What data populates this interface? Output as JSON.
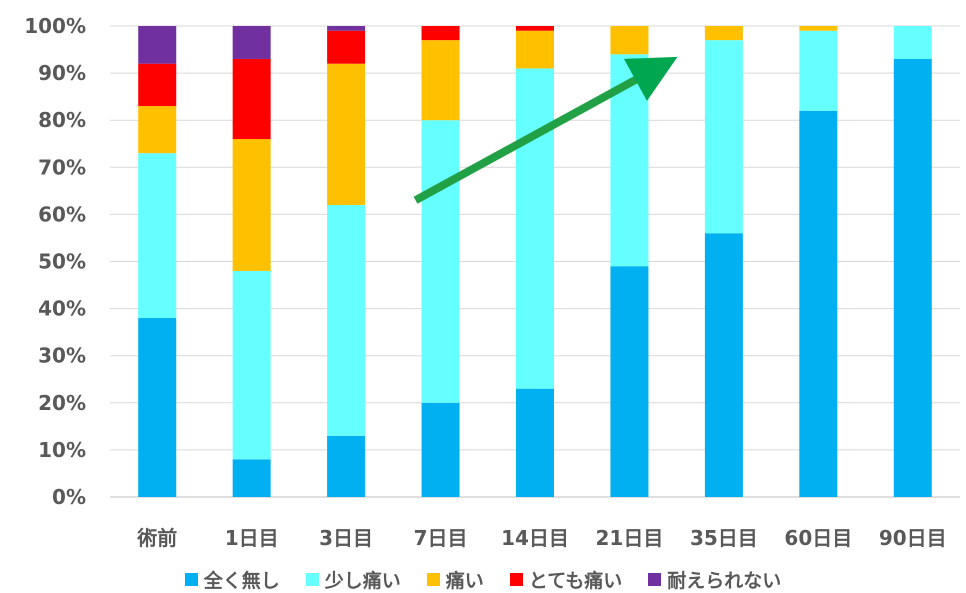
{
  "chart_data": {
    "type": "bar",
    "stacked": true,
    "percent": true,
    "categories": [
      "術前",
      "1日目",
      "3日目",
      "7日目",
      "14日目",
      "21日目",
      "35日目",
      "60日目",
      "90日目"
    ],
    "series": [
      {
        "name": "全く無し",
        "color": "#00B0F0",
        "values": [
          38,
          8,
          13,
          20,
          23,
          49,
          56,
          82,
          93
        ]
      },
      {
        "name": "少し痛い",
        "color": "#66FFFF",
        "values": [
          35,
          40,
          49,
          60,
          68,
          45,
          41,
          17,
          7
        ]
      },
      {
        "name": "痛い",
        "color": "#FFC000",
        "values": [
          10,
          28,
          30,
          17,
          8,
          6,
          3,
          1,
          0
        ]
      },
      {
        "name": "とても痛い",
        "color": "#FF0000",
        "values": [
          9,
          17,
          7,
          3,
          1,
          0,
          0,
          0,
          0
        ]
      },
      {
        "name": "耐えられない",
        "color": "#7030A0",
        "values": [
          8,
          7,
          1,
          0,
          0,
          0,
          0,
          0,
          0
        ]
      }
    ],
    "ylim": [
      0,
      100
    ],
    "yticks": [
      "0%",
      "10%",
      "20%",
      "30%",
      "40%",
      "50%",
      "60%",
      "70%",
      "80%",
      "90%",
      "100%"
    ],
    "grid": true,
    "legend": "bottom",
    "annotations": [
      {
        "type": "arrow",
        "color": "#00A650",
        "from_category": 3,
        "from_y": 63,
        "to_category": 5,
        "to_y": 91
      }
    ]
  }
}
